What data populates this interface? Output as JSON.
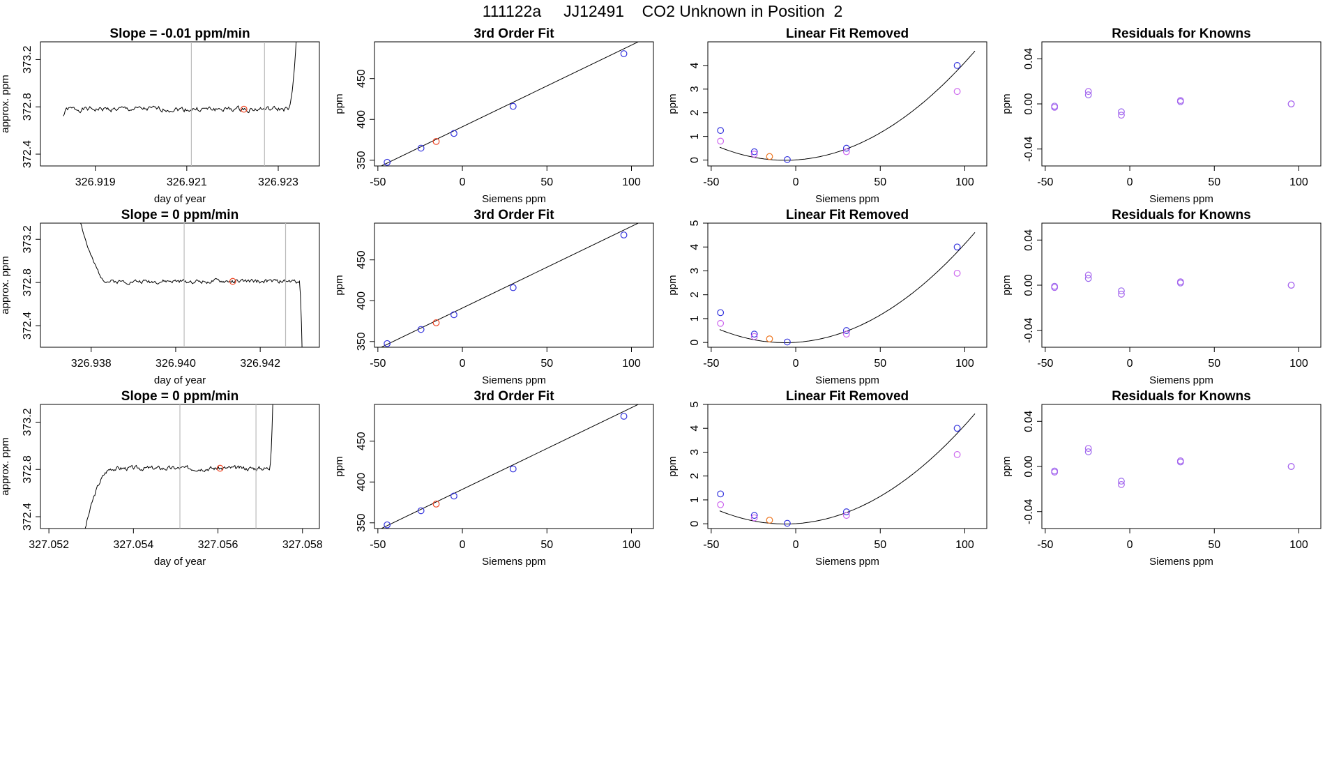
{
  "page_title": "111122a     JJ12491    CO2 Unknown in Position  2",
  "colors": {
    "known": "#3333dd",
    "unknown": "#ee4422",
    "unknown_fit": "#ee7722",
    "secondary": "#cc66ee",
    "residual_a": "#9966ee",
    "residual_b": "#aa66ee",
    "curve": "#000000",
    "marker_line": "#bbbbbb"
  },
  "chart_data": [
    {
      "type": "line",
      "row": 0,
      "col": 0,
      "title": "Slope =  -0.01  ppm/min",
      "xlabel": "day of year",
      "ylabel": "approx. ppm",
      "xlim": [
        326.9178,
        326.9239
      ],
      "ylim": [
        372.3,
        373.35
      ],
      "xticks": [
        "326.919",
        "326.921",
        "326.923"
      ],
      "yticks": [
        "372.4",
        "372.8",
        "373.2"
      ],
      "trace": {
        "x_start": 326.9183,
        "x_end": 326.9234,
        "level": 372.78,
        "amp": 0.018,
        "seed": 1,
        "start": {
          "frac": 0.02,
          "value": 372.72
        },
        "end": {
          "frac": 0.035,
          "value": 373.4
        }
      },
      "marker_lines": [
        326.9211,
        326.9227
      ],
      "points": [
        {
          "x": 326.92225,
          "y": 372.78,
          "role": "unknown"
        }
      ]
    },
    {
      "type": "scatter",
      "row": 0,
      "col": 1,
      "title": "3rd Order Fit",
      "xlabel": "Siemens ppm",
      "ylabel": "ppm",
      "xlim": [
        -52,
        113
      ],
      "ylim": [
        343,
        495
      ],
      "xticks": [
        -50,
        0,
        50,
        100
      ],
      "yticks": [
        350,
        400,
        450
      ],
      "curve": [
        [
          -49,
          342
        ],
        [
          106,
          497
        ]
      ],
      "points": [
        {
          "x": -44.5,
          "y": 347.5,
          "role": "known"
        },
        {
          "x": -24.5,
          "y": 364.8,
          "role": "known"
        },
        {
          "x": -15.5,
          "y": 373,
          "role": "unknown"
        },
        {
          "x": -5,
          "y": 382.8,
          "role": "known"
        },
        {
          "x": 30,
          "y": 416,
          "role": "known"
        },
        {
          "x": 95.5,
          "y": 480.5,
          "role": "known"
        }
      ]
    },
    {
      "type": "scatter",
      "row": 0,
      "col": 2,
      "title": "Linear Fit Removed",
      "xlabel": "Siemens ppm",
      "ylabel": "ppm",
      "xlim": [
        -52,
        113
      ],
      "ylim": [
        -0.25,
        5
      ],
      "xticks": [
        -50,
        0,
        50,
        100
      ],
      "yticks": [
        0,
        1,
        2,
        3,
        4
      ],
      "curve_fn": {
        "a": 0.000367,
        "b": 0.00456,
        "c": 0.0043,
        "from": -45,
        "to": 106
      },
      "points": [
        {
          "x": -44.5,
          "y": 1.25,
          "role": "known"
        },
        {
          "x": -44.5,
          "y": 0.8,
          "role": "secondary"
        },
        {
          "x": -24.5,
          "y": 0.35,
          "role": "known"
        },
        {
          "x": -24.5,
          "y": 0.25,
          "role": "secondary"
        },
        {
          "x": -15.5,
          "y": 0.15,
          "role": "unknown_fit"
        },
        {
          "x": -5,
          "y": 0.02,
          "role": "known"
        },
        {
          "x": 30,
          "y": 0.5,
          "role": "known"
        },
        {
          "x": 30,
          "y": 0.35,
          "role": "secondary"
        },
        {
          "x": 95.5,
          "y": 4,
          "role": "known"
        },
        {
          "x": 95.5,
          "y": 2.9,
          "role": "secondary"
        }
      ]
    },
    {
      "type": "scatter",
      "row": 0,
      "col": 3,
      "title": "Residuals for Knowns",
      "xlabel": "Siemens ppm",
      "ylabel": "ppm",
      "xlim": [
        -52,
        113
      ],
      "ylim": [
        -0.055,
        0.055
      ],
      "xticks": [
        -50,
        0,
        50,
        100
      ],
      "yticks": [
        "-0.04",
        "0.00",
        "0.04"
      ],
      "points": [
        {
          "x": -44.5,
          "y": -0.002,
          "role": "residual_a"
        },
        {
          "x": -44.5,
          "y": -0.003,
          "role": "residual_b"
        },
        {
          "x": -24.5,
          "y": 0.008,
          "role": "residual_a"
        },
        {
          "x": -24.5,
          "y": 0.011,
          "role": "residual_b"
        },
        {
          "x": -5,
          "y": -0.007,
          "role": "residual_a"
        },
        {
          "x": -5,
          "y": -0.01,
          "role": "residual_b"
        },
        {
          "x": 30,
          "y": 0.002,
          "role": "residual_a"
        },
        {
          "x": 30,
          "y": 0.003,
          "role": "residual_b"
        },
        {
          "x": 95.5,
          "y": 0,
          "role": "residual_a"
        },
        {
          "x": 95.5,
          "y": 0,
          "role": "residual_b"
        }
      ]
    },
    {
      "type": "line",
      "row": 1,
      "col": 0,
      "title": "Slope =  0  ppm/min",
      "xlabel": "day of year",
      "ylabel": "approx. ppm",
      "xlim": [
        326.9368,
        326.9434
      ],
      "ylim": [
        372.2,
        373.35
      ],
      "xticks": [
        "326.938",
        "326.940",
        "326.942"
      ],
      "yticks": [
        "372.4",
        "372.8",
        "373.2"
      ],
      "trace": {
        "x_start": 326.9377,
        "x_end": 326.943,
        "level": 372.81,
        "amp": 0.016,
        "seed": 2,
        "start": {
          "frac": 0.14,
          "value": 373.45
        },
        "end": {
          "frac": 0.015,
          "value": 372.0
        }
      },
      "marker_lines": [
        326.9402,
        326.9426
      ],
      "points": [
        {
          "x": 326.94135,
          "y": 372.81,
          "role": "unknown"
        }
      ]
    },
    {
      "type": "scatter",
      "row": 1,
      "col": 1,
      "title": "3rd Order Fit",
      "xlabel": "Siemens ppm",
      "ylabel": "ppm",
      "xlim": [
        -52,
        113
      ],
      "ylim": [
        343,
        495
      ],
      "xticks": [
        -50,
        0,
        50,
        100
      ],
      "yticks": [
        350,
        400,
        450
      ],
      "curve": [
        [
          -49,
          342
        ],
        [
          106,
          497
        ]
      ],
      "points": [
        {
          "x": -44.5,
          "y": 347.5,
          "role": "known"
        },
        {
          "x": -24.5,
          "y": 364.8,
          "role": "known"
        },
        {
          "x": -15.5,
          "y": 373,
          "role": "unknown"
        },
        {
          "x": -5,
          "y": 382.8,
          "role": "known"
        },
        {
          "x": 30,
          "y": 416,
          "role": "known"
        },
        {
          "x": 95.5,
          "y": 480.5,
          "role": "known"
        }
      ]
    },
    {
      "type": "scatter",
      "row": 1,
      "col": 2,
      "title": "Linear Fit Removed",
      "xlabel": "Siemens ppm",
      "ylabel": "ppm",
      "xlim": [
        -52,
        113
      ],
      "ylim": [
        -0.2,
        5
      ],
      "xticks": [
        -50,
        0,
        50,
        100
      ],
      "yticks": [
        0,
        1,
        2,
        3,
        4,
        5
      ],
      "curve_fn": {
        "a": 0.000367,
        "b": 0.00456,
        "c": 0.0043,
        "from": -45,
        "to": 106
      },
      "points": [
        {
          "x": -44.5,
          "y": 1.25,
          "role": "known"
        },
        {
          "x": -44.5,
          "y": 0.8,
          "role": "secondary"
        },
        {
          "x": -24.5,
          "y": 0.35,
          "role": "known"
        },
        {
          "x": -24.5,
          "y": 0.25,
          "role": "secondary"
        },
        {
          "x": -15.5,
          "y": 0.15,
          "role": "unknown_fit"
        },
        {
          "x": -5,
          "y": 0.02,
          "role": "known"
        },
        {
          "x": 30,
          "y": 0.5,
          "role": "known"
        },
        {
          "x": 30,
          "y": 0.35,
          "role": "secondary"
        },
        {
          "x": 95.5,
          "y": 4,
          "role": "known"
        },
        {
          "x": 95.5,
          "y": 2.9,
          "role": "secondary"
        }
      ]
    },
    {
      "type": "scatter",
      "row": 1,
      "col": 3,
      "title": "Residuals for Knowns",
      "xlabel": "Siemens ppm",
      "ylabel": "ppm",
      "xlim": [
        -52,
        113
      ],
      "ylim": [
        -0.055,
        0.055
      ],
      "xticks": [
        -50,
        0,
        50,
        100
      ],
      "yticks": [
        "-0.04",
        "0.00",
        "0.04"
      ],
      "points": [
        {
          "x": -44.5,
          "y": -0.001,
          "role": "residual_a"
        },
        {
          "x": -44.5,
          "y": -0.002,
          "role": "residual_b"
        },
        {
          "x": -24.5,
          "y": 0.006,
          "role": "residual_a"
        },
        {
          "x": -24.5,
          "y": 0.009,
          "role": "residual_b"
        },
        {
          "x": -5,
          "y": -0.005,
          "role": "residual_a"
        },
        {
          "x": -5,
          "y": -0.008,
          "role": "residual_b"
        },
        {
          "x": 30,
          "y": 0.002,
          "role": "residual_a"
        },
        {
          "x": 30,
          "y": 0.003,
          "role": "residual_b"
        },
        {
          "x": 95.5,
          "y": 0,
          "role": "residual_a"
        },
        {
          "x": 95.5,
          "y": 0,
          "role": "residual_b"
        }
      ]
    },
    {
      "type": "line",
      "row": 2,
      "col": 0,
      "title": "Slope =  0  ppm/min",
      "xlabel": "day of year",
      "ylabel": "approx. ppm",
      "xlim": [
        327.0518,
        327.0584
      ],
      "ylim": [
        372.3,
        373.35
      ],
      "xticks": [
        "327.052",
        "327.054",
        "327.056",
        "327.058"
      ],
      "yticks": [
        "372.4",
        "372.8",
        "373.2"
      ],
      "trace": {
        "x_start": 327.0528,
        "x_end": 327.0573,
        "level": 372.81,
        "amp": 0.015,
        "seed": 3,
        "start": {
          "frac": 0.16,
          "value": 372.2
        },
        "end": {
          "frac": 0.02,
          "value": 373.4
        }
      },
      "marker_lines": [
        327.0551,
        327.0569
      ],
      "points": [
        {
          "x": 327.05605,
          "y": 372.81,
          "role": "unknown"
        }
      ]
    },
    {
      "type": "scatter",
      "row": 2,
      "col": 1,
      "title": "3rd Order Fit",
      "xlabel": "Siemens ppm",
      "ylabel": "ppm",
      "xlim": [
        -52,
        113
      ],
      "ylim": [
        343,
        495
      ],
      "xticks": [
        -50,
        0,
        50,
        100
      ],
      "yticks": [
        350,
        400,
        450
      ],
      "curve": [
        [
          -49,
          342
        ],
        [
          106,
          497
        ]
      ],
      "points": [
        {
          "x": -44.5,
          "y": 347.5,
          "role": "known"
        },
        {
          "x": -24.5,
          "y": 364.8,
          "role": "known"
        },
        {
          "x": -15.5,
          "y": 373,
          "role": "unknown"
        },
        {
          "x": -5,
          "y": 382.8,
          "role": "known"
        },
        {
          "x": 30,
          "y": 416,
          "role": "known"
        },
        {
          "x": 95.5,
          "y": 480.5,
          "role": "known"
        }
      ]
    },
    {
      "type": "scatter",
      "row": 2,
      "col": 2,
      "title": "Linear Fit Removed",
      "xlabel": "Siemens ppm",
      "ylabel": "ppm",
      "xlim": [
        -52,
        113
      ],
      "ylim": [
        -0.2,
        5
      ],
      "xticks": [
        -50,
        0,
        50,
        100
      ],
      "yticks": [
        0,
        1,
        2,
        3,
        4,
        5
      ],
      "curve_fn": {
        "a": 0.000367,
        "b": 0.00456,
        "c": 0.0043,
        "from": -45,
        "to": 106
      },
      "points": [
        {
          "x": -44.5,
          "y": 1.25,
          "role": "known"
        },
        {
          "x": -44.5,
          "y": 0.8,
          "role": "secondary"
        },
        {
          "x": -24.5,
          "y": 0.35,
          "role": "known"
        },
        {
          "x": -24.5,
          "y": 0.25,
          "role": "secondary"
        },
        {
          "x": -15.5,
          "y": 0.15,
          "role": "unknown_fit"
        },
        {
          "x": -5,
          "y": 0.02,
          "role": "known"
        },
        {
          "x": 30,
          "y": 0.5,
          "role": "known"
        },
        {
          "x": 30,
          "y": 0.35,
          "role": "secondary"
        },
        {
          "x": 95.5,
          "y": 4,
          "role": "known"
        },
        {
          "x": 95.5,
          "y": 2.9,
          "role": "secondary"
        }
      ]
    },
    {
      "type": "scatter",
      "row": 2,
      "col": 3,
      "title": "Residuals for Knowns",
      "xlabel": "Siemens ppm",
      "ylabel": "ppm",
      "xlim": [
        -52,
        113
      ],
      "ylim": [
        -0.055,
        0.055
      ],
      "xticks": [
        -50,
        0,
        50,
        100
      ],
      "yticks": [
        "-0.04",
        "0.00",
        "0.04"
      ],
      "points": [
        {
          "x": -44.5,
          "y": -0.004,
          "role": "residual_a"
        },
        {
          "x": -44.5,
          "y": -0.005,
          "role": "residual_b"
        },
        {
          "x": -24.5,
          "y": 0.013,
          "role": "residual_a"
        },
        {
          "x": -24.5,
          "y": 0.016,
          "role": "residual_b"
        },
        {
          "x": -5,
          "y": -0.013,
          "role": "residual_a"
        },
        {
          "x": -5,
          "y": -0.016,
          "role": "residual_b"
        },
        {
          "x": 30,
          "y": 0.004,
          "role": "residual_a"
        },
        {
          "x": 30,
          "y": 0.005,
          "role": "residual_b"
        },
        {
          "x": 95.5,
          "y": 0,
          "role": "residual_a"
        },
        {
          "x": 95.5,
          "y": 0,
          "role": "residual_b"
        }
      ]
    }
  ]
}
